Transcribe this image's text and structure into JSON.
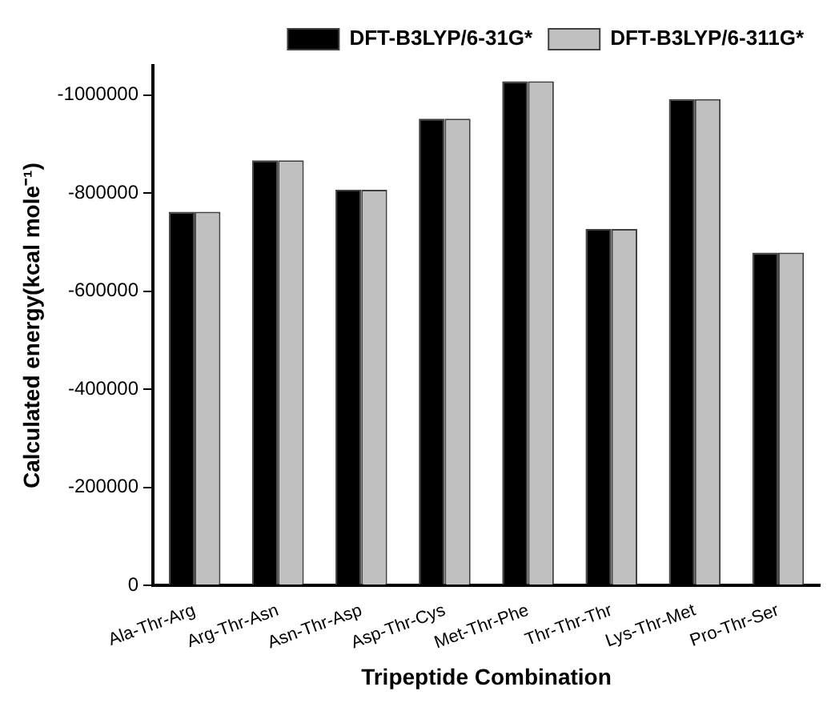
{
  "chart_data": {
    "type": "bar",
    "xlabel": "Tripeptide Combination",
    "ylabel": "Calculated energy(kcal mole⁻¹)",
    "categories": [
      "Ala-Thr-Arg",
      "Arg-Thr-Asn",
      "Asn-Thr-Asp",
      "Asp-Thr-Cys",
      "Met-Thr-Phe",
      "Thr-Thr-Thr",
      "Lys-Thr-Met",
      "Pro-Thr-Ser"
    ],
    "series": [
      {
        "name": "DFT-B3LYP/6-31G*",
        "color": "#000000",
        "values": [
          -762000,
          -867000,
          -807000,
          -952000,
          -1028000,
          -727000,
          -992000,
          -679000
        ]
      },
      {
        "name": "DFT-B3LYP/6-311G*",
        "color": "#c0c0c0",
        "values": [
          -762000,
          -867000,
          -807000,
          -952000,
          -1028000,
          -727000,
          -992000,
          -679000
        ]
      }
    ],
    "ylim": [
      0,
      -1060000
    ],
    "yticks": [
      0,
      -200000,
      -400000,
      -600000,
      -800000,
      -1000000
    ],
    "grid": false,
    "legend": "top right"
  }
}
